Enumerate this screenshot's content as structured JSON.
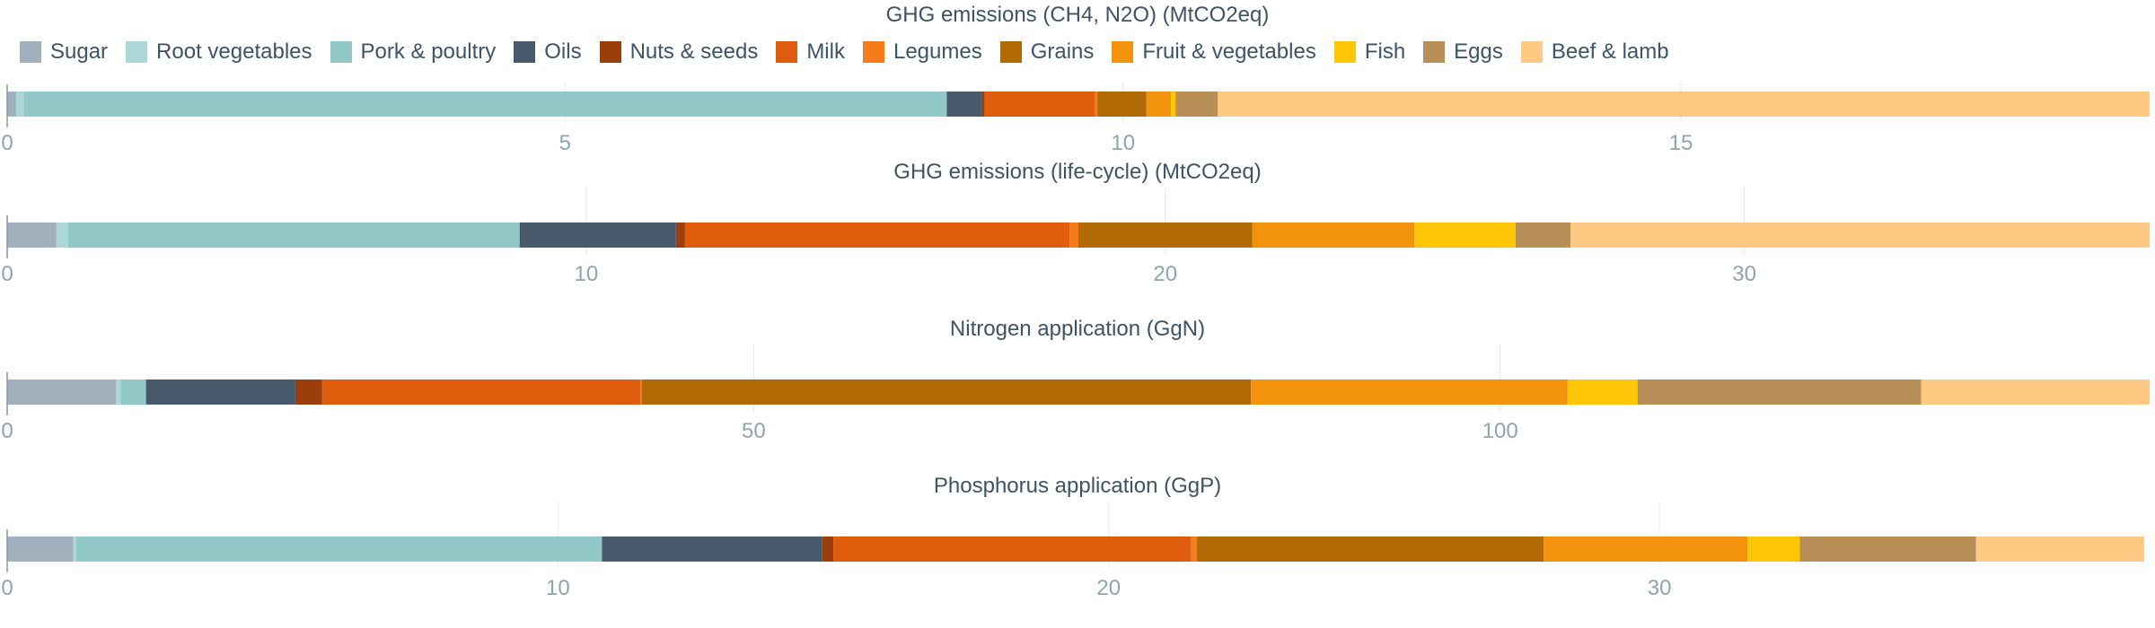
{
  "chart_data": {
    "type": "bar",
    "orientation": "horizontal",
    "stacked": true,
    "legend_placement": "top-left",
    "categories": [
      "Sugar",
      "Root vegetables",
      "Pork & poultry",
      "Oils",
      "Nuts & seeds",
      "Milk",
      "Legumes",
      "Grains",
      "Fruit & vegetables",
      "Fish",
      "Eggs",
      "Beef & lamb"
    ],
    "colors": [
      "#a2b0bd",
      "#abd8d6",
      "#93c8c9",
      "#475a6b",
      "#9b3e0c",
      "#df5d0d",
      "#f47c1b",
      "#b26a06",
      "#f3920c",
      "#fec606",
      "#b78f57",
      "#fec982"
    ],
    "panels": [
      {
        "title": "GHG emissions (CH4, N2O) (MtCO2eq)",
        "xlim": [
          0,
          19.2
        ],
        "ticks": [
          0,
          5,
          10,
          15
        ],
        "tick_labels": [
          "0",
          "5",
          "10",
          "15"
        ],
        "values": [
          0.08,
          0.07,
          8.27,
          0.31,
          0.03,
          0.99,
          0.02,
          0.44,
          0.22,
          0.04,
          0.38,
          8.35
        ]
      },
      {
        "title": "GHG emissions (life-cycle) (MtCO2eq)",
        "xlim": [
          0,
          37
        ],
        "ticks": [
          0,
          10,
          20,
          30
        ],
        "tick_labels": [
          "0",
          "10",
          "20",
          "30"
        ],
        "values": [
          0.85,
          0.2,
          7.8,
          2.7,
          0.15,
          6.65,
          0.15,
          3.0,
          2.8,
          1.75,
          0.95,
          10.0
        ]
      },
      {
        "title": "Nitrogen application (GgN)",
        "xlim": [
          0,
          143.5
        ],
        "ticks": [
          0,
          50,
          100
        ],
        "tick_labels": [
          "0",
          "50",
          "100"
        ],
        "values": [
          7.3,
          0.3,
          1.7,
          10.0,
          1.8,
          21.3,
          0.1,
          40.8,
          21.2,
          4.7,
          19.0,
          15.3
        ]
      },
      {
        "title": "Phosphorus application (GgP)",
        "xlim": [
          0,
          38.9
        ],
        "ticks": [
          0,
          10,
          20,
          30
        ],
        "tick_labels": [
          "0",
          "10",
          "20",
          "30"
        ],
        "values": [
          1.2,
          0.05,
          9.55,
          4.0,
          0.2,
          6.5,
          0.1,
          6.3,
          3.7,
          0.95,
          3.2,
          3.05
        ]
      }
    ]
  }
}
